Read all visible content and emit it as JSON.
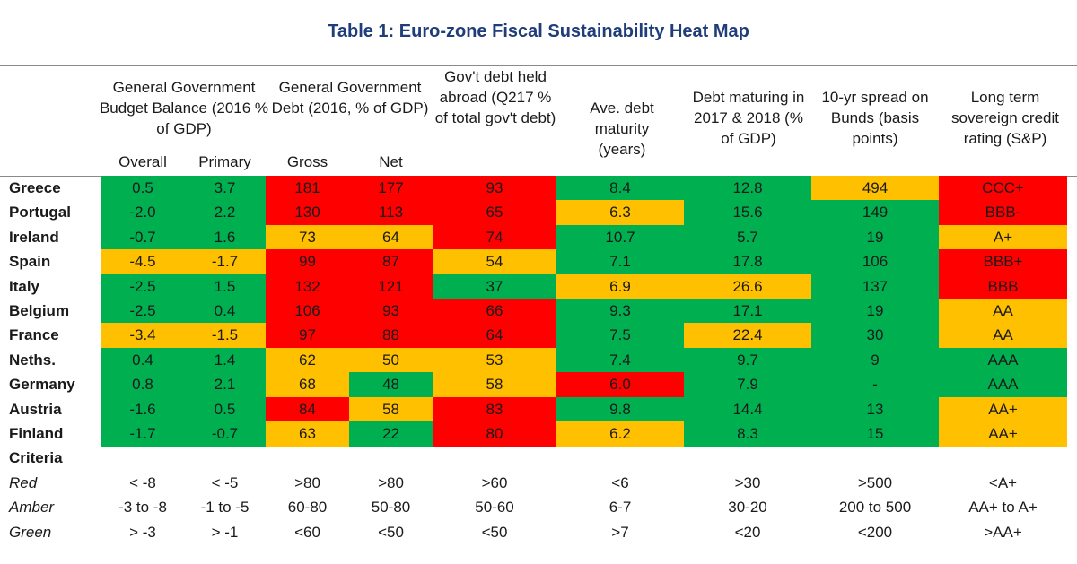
{
  "title": "Table 1: Euro-zone Fiscal Sustainability Heat Map",
  "colors": {
    "red": "#ff0000",
    "amber": "#ffc000",
    "green": "#00b050"
  },
  "headers": [
    "General Government Budget Balance (2016 % of GDP)",
    "General Government Debt (2016, % of GDP)",
    "Gov't debt held abroad (Q217 % of total gov't debt)",
    "Ave. debt maturity (years)",
    "Debt maturing in 2017 & 2018 (% of GDP)",
    "10-yr spread on Bunds (basis points)",
    "Long term sovereign credit rating (S&P)"
  ],
  "subheaders": [
    "Overall",
    "Primary",
    "Gross",
    "Net"
  ],
  "chart_data": {
    "type": "table",
    "title": "Table 1: Euro-zone Fiscal Sustainability Heat Map",
    "columns": [
      "Overall",
      "Primary",
      "Gross",
      "Net",
      "Gov't debt held abroad",
      "Ave. debt maturity",
      "Debt maturing 2017 & 2018",
      "10-yr spread on Bunds",
      "Long term sovereign credit rating"
    ],
    "rows": [
      {
        "country": "Greece",
        "values": [
          "0.5",
          "3.7",
          "181",
          "177",
          "93",
          "8.4",
          "12.8",
          "494",
          "CCC+"
        ],
        "colors": [
          "g",
          "g",
          "r",
          "r",
          "r",
          "g",
          "g",
          "a",
          "r"
        ]
      },
      {
        "country": "Portugal",
        "values": [
          "-2.0",
          "2.2",
          "130",
          "113",
          "65",
          "6.3",
          "15.6",
          "149",
          "BBB-"
        ],
        "colors": [
          "g",
          "g",
          "r",
          "r",
          "r",
          "a",
          "g",
          "g",
          "r"
        ]
      },
      {
        "country": "Ireland",
        "values": [
          "-0.7",
          "1.6",
          "73",
          "64",
          "74",
          "10.7",
          "5.7",
          "19",
          "A+"
        ],
        "colors": [
          "g",
          "g",
          "a",
          "a",
          "r",
          "g",
          "g",
          "g",
          "a"
        ]
      },
      {
        "country": "Spain",
        "values": [
          "-4.5",
          "-1.7",
          "99",
          "87",
          "54",
          "7.1",
          "17.8",
          "106",
          "BBB+"
        ],
        "colors": [
          "a",
          "a",
          "r",
          "r",
          "a",
          "g",
          "g",
          "g",
          "r"
        ]
      },
      {
        "country": "Italy",
        "values": [
          "-2.5",
          "1.5",
          "132",
          "121",
          "37",
          "6.9",
          "26.6",
          "137",
          "BBB"
        ],
        "colors": [
          "g",
          "g",
          "r",
          "r",
          "g",
          "a",
          "a",
          "g",
          "r"
        ]
      },
      {
        "country": "Belgium",
        "values": [
          "-2.5",
          "0.4",
          "106",
          "93",
          "66",
          "9.3",
          "17.1",
          "19",
          "AA"
        ],
        "colors": [
          "g",
          "g",
          "r",
          "r",
          "r",
          "g",
          "g",
          "g",
          "a"
        ]
      },
      {
        "country": "France",
        "values": [
          "-3.4",
          "-1.5",
          "97",
          "88",
          "64",
          "7.5",
          "22.4",
          "30",
          "AA"
        ],
        "colors": [
          "a",
          "a",
          "r",
          "r",
          "r",
          "g",
          "a",
          "g",
          "a"
        ]
      },
      {
        "country": "Neths.",
        "values": [
          "0.4",
          "1.4",
          "62",
          "50",
          "53",
          "7.4",
          "9.7",
          "9",
          "AAA"
        ],
        "colors": [
          "g",
          "g",
          "a",
          "a",
          "a",
          "g",
          "g",
          "g",
          "g"
        ]
      },
      {
        "country": "Germany",
        "values": [
          "0.8",
          "2.1",
          "68",
          "48",
          "58",
          "6.0",
          "7.9",
          "-",
          "AAA"
        ],
        "colors": [
          "g",
          "g",
          "a",
          "g",
          "a",
          "r",
          "g",
          "g",
          "g"
        ]
      },
      {
        "country": "Austria",
        "values": [
          "-1.6",
          "0.5",
          "84",
          "58",
          "83",
          "9.8",
          "14.4",
          "13",
          "AA+"
        ],
        "colors": [
          "g",
          "g",
          "r",
          "a",
          "r",
          "g",
          "g",
          "g",
          "a"
        ]
      },
      {
        "country": "Finland",
        "values": [
          "-1.7",
          "-0.7",
          "63",
          "22",
          "80",
          "6.2",
          "8.3",
          "15",
          "AA+"
        ],
        "colors": [
          "g",
          "g",
          "a",
          "g",
          "r",
          "a",
          "g",
          "g",
          "a"
        ]
      }
    ]
  },
  "criteria": {
    "heading": "Criteria",
    "rows": [
      {
        "label": "Red",
        "values": [
          "< -8",
          "< -5",
          ">80",
          ">80",
          ">60",
          "<6",
          ">30",
          ">500",
          "<A+"
        ]
      },
      {
        "label": "Amber",
        "values": [
          "-3 to -8",
          "-1 to -5",
          "60-80",
          "50-80",
          "50-60",
          "6-7",
          "30-20",
          "200 to 500",
          "AA+ to A+"
        ]
      },
      {
        "label": "Green",
        "values": [
          "> -3",
          "> -1",
          "<60",
          "<50",
          "<50",
          ">7",
          "<20",
          "<200",
          ">AA+"
        ]
      }
    ]
  }
}
